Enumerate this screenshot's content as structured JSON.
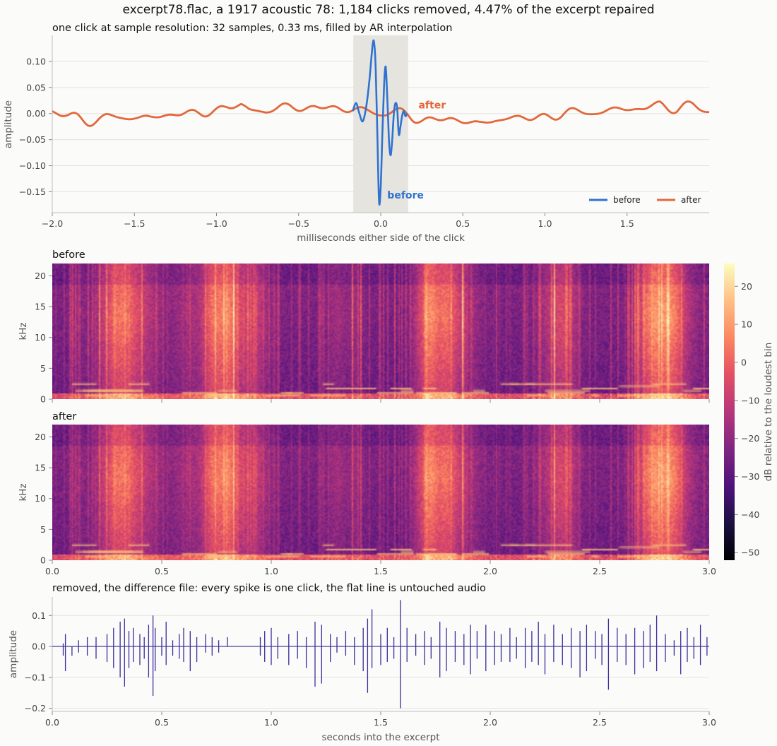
{
  "title": "excerpt78.flac, a 1917 acoustic 78: 1,184 clicks removed, 4.47% of the excerpt repaired",
  "colors": {
    "before": "#2f73d0",
    "after": "#e2683c",
    "diff": "#3a2d9c",
    "highlight": "#e6e4df",
    "grid": "#e3e3e3",
    "axis": "#bdbdbd"
  },
  "chart_data": [
    {
      "type": "line",
      "title": "one click at sample resolution: 32 samples, 0.33 ms, filled by AR interpolation",
      "xlabel": "milliseconds either side of the click",
      "ylabel": "amplitude",
      "xlim": [
        -2.0,
        2.0
      ],
      "ylim": [
        -0.19,
        0.15
      ],
      "xticks": [
        "−2.0",
        "−1.5",
        "−1.0",
        "−0.5",
        "0.0",
        "0.5",
        "1.0",
        "1.5"
      ],
      "xtick_values": [
        -2.0,
        -1.5,
        -1.0,
        -0.5,
        0.0,
        0.5,
        1.0,
        1.5
      ],
      "yticks": [
        "0.10",
        "0.05",
        "0.00",
        "−0.05",
        "−0.10",
        "−0.15"
      ],
      "ytick_values": [
        0.1,
        0.05,
        0.0,
        -0.05,
        -0.1,
        -0.15
      ],
      "grid": true,
      "shaded_region": [
        -0.167,
        0.167
      ],
      "legend": "bottom-right",
      "annotations": [
        {
          "text": "before",
          "x": 0.04,
          "y": -0.163,
          "series": "before"
        },
        {
          "text": "after",
          "x": 0.23,
          "y": 0.01,
          "series": "after"
        }
      ],
      "series": [
        {
          "name": "before",
          "x": [
            -0.17,
            -0.15,
            -0.13,
            -0.11,
            -0.09,
            -0.07,
            -0.05,
            -0.04,
            -0.03,
            -0.02,
            -0.01,
            0.0,
            0.01,
            0.02,
            0.03,
            0.04,
            0.05,
            0.06,
            0.07,
            0.08,
            0.09,
            0.1,
            0.11,
            0.12,
            0.13,
            0.14,
            0.15,
            0.16
          ],
          "y": [
            0.005,
            0.02,
            0.0,
            -0.015,
            0.01,
            0.06,
            0.13,
            0.135,
            0.08,
            -0.05,
            -0.17,
            -0.14,
            -0.04,
            0.05,
            0.09,
            0.03,
            -0.05,
            -0.08,
            -0.05,
            0.0,
            0.02,
            0.01,
            -0.04,
            -0.025,
            -0.005,
            0.005,
            -0.005,
            0.0
          ]
        },
        {
          "name": "after",
          "x": [
            -2.0,
            -1.9,
            -1.8,
            -1.7,
            -1.6,
            -1.5,
            -1.4,
            -1.3,
            -1.2,
            -1.1,
            -1.0,
            -0.9,
            -0.85,
            -0.8,
            -0.7,
            -0.6,
            -0.5,
            -0.4,
            -0.3,
            -0.2,
            -0.1,
            0.0,
            0.1,
            0.2,
            0.3,
            0.4,
            0.5,
            0.6,
            0.7,
            0.8,
            0.9,
            1.0,
            1.1,
            1.2,
            1.3,
            1.4,
            1.5,
            1.6,
            1.7,
            1.8,
            1.9,
            2.0
          ],
          "y": [
            0.004,
            -0.006,
            -0.01,
            -0.012,
            -0.008,
            -0.005,
            -0.008,
            -0.004,
            0.0,
            0.003,
            0.005,
            0.012,
            0.018,
            0.008,
            0.006,
            0.01,
            0.012,
            0.013,
            0.01,
            0.008,
            0.005,
            0.004,
            0.0,
            -0.008,
            -0.01,
            -0.012,
            -0.015,
            -0.018,
            -0.012,
            -0.01,
            -0.008,
            -0.005,
            -0.002,
            0.002,
            0.004,
            0.006,
            0.008,
            0.01,
            0.018,
            0.01,
            0.012,
            0.008
          ]
        }
      ]
    },
    {
      "type": "heatmap",
      "title": "before",
      "ylabel": "kHz",
      "xlim": [
        0,
        3.0
      ],
      "ylim": [
        0,
        22
      ],
      "yticks": [
        "0",
        "5",
        "10",
        "15",
        "20"
      ],
      "ytick_values": [
        0,
        5,
        10,
        15,
        20
      ],
      "colormap": "magma",
      "colorbar": {
        "label": "dB relative to the loudest bin",
        "range": [
          -52,
          26
        ],
        "ticks": [
          "20",
          "10",
          "0",
          "−10",
          "−20",
          "−30",
          "−40",
          "−50"
        ],
        "tick_values": [
          20,
          10,
          0,
          -10,
          -20,
          -30,
          -40,
          -50
        ]
      }
    },
    {
      "type": "heatmap",
      "title": "after",
      "ylabel": "kHz",
      "xlim": [
        0,
        3.0
      ],
      "ylim": [
        0,
        22
      ],
      "xticks": [
        "0.0",
        "0.5",
        "1.0",
        "1.5",
        "2.0",
        "2.5",
        "3.0"
      ],
      "xtick_values": [
        0.0,
        0.5,
        1.0,
        1.5,
        2.0,
        2.5,
        3.0
      ],
      "yticks": [
        "0",
        "5",
        "10",
        "15",
        "20"
      ],
      "ytick_values": [
        0,
        5,
        10,
        15,
        20
      ],
      "colormap": "magma"
    },
    {
      "type": "bar",
      "title": "removed, the difference file: every spike is one click, the flat line is untouched audio",
      "xlabel": "seconds into the excerpt",
      "ylabel": "amplitude",
      "xlim": [
        0,
        3.0
      ],
      "ylim": [
        -0.21,
        0.16
      ],
      "xticks": [
        "0.0",
        "0.5",
        "1.0",
        "1.5",
        "2.0",
        "2.5",
        "3.0"
      ],
      "xtick_values": [
        0.0,
        0.5,
        1.0,
        1.5,
        2.0,
        2.5,
        3.0
      ],
      "yticks": [
        "0.1",
        "0.0",
        "−0.1",
        "−0.2"
      ],
      "ytick_values": [
        0.1,
        0.0,
        -0.1,
        -0.2
      ],
      "grid": true,
      "spikes": [
        {
          "x": 0.05,
          "top": 0.01,
          "bottom": -0.03
        },
        {
          "x": 0.06,
          "top": 0.04,
          "bottom": -0.08
        },
        {
          "x": 0.09,
          "top": 0.0,
          "bottom": -0.03
        },
        {
          "x": 0.12,
          "top": 0.02,
          "bottom": -0.02
        },
        {
          "x": 0.16,
          "top": 0.03,
          "bottom": -0.03
        },
        {
          "x": 0.2,
          "top": 0.03,
          "bottom": -0.04
        },
        {
          "x": 0.25,
          "top": 0.04,
          "bottom": -0.05
        },
        {
          "x": 0.28,
          "top": 0.06,
          "bottom": -0.07
        },
        {
          "x": 0.31,
          "top": 0.08,
          "bottom": -0.1
        },
        {
          "x": 0.33,
          "top": 0.09,
          "bottom": -0.13
        },
        {
          "x": 0.35,
          "top": 0.05,
          "bottom": -0.07
        },
        {
          "x": 0.37,
          "top": 0.06,
          "bottom": -0.05
        },
        {
          "x": 0.4,
          "top": 0.04,
          "bottom": -0.06
        },
        {
          "x": 0.42,
          "top": 0.03,
          "bottom": -0.04
        },
        {
          "x": 0.44,
          "top": 0.07,
          "bottom": -0.1
        },
        {
          "x": 0.46,
          "top": 0.1,
          "bottom": -0.16
        },
        {
          "x": 0.47,
          "top": 0.06,
          "bottom": -0.08
        },
        {
          "x": 0.5,
          "top": 0.03,
          "bottom": -0.03
        },
        {
          "x": 0.52,
          "top": 0.08,
          "bottom": -0.06
        },
        {
          "x": 0.55,
          "top": 0.02,
          "bottom": -0.03
        },
        {
          "x": 0.58,
          "top": 0.04,
          "bottom": -0.04
        },
        {
          "x": 0.6,
          "top": 0.06,
          "bottom": -0.05
        },
        {
          "x": 0.63,
          "top": 0.05,
          "bottom": -0.08
        },
        {
          "x": 0.66,
          "top": 0.03,
          "bottom": -0.05
        },
        {
          "x": 0.7,
          "top": 0.04,
          "bottom": -0.02
        },
        {
          "x": 0.73,
          "top": 0.03,
          "bottom": -0.03
        },
        {
          "x": 0.76,
          "top": 0.02,
          "bottom": -0.02
        },
        {
          "x": 0.8,
          "top": 0.03,
          "bottom": 0.0
        },
        {
          "x": 0.95,
          "top": 0.03,
          "bottom": -0.03
        },
        {
          "x": 0.97,
          "top": 0.05,
          "bottom": -0.05
        },
        {
          "x": 1.0,
          "top": 0.06,
          "bottom": -0.06
        },
        {
          "x": 1.03,
          "top": 0.03,
          "bottom": -0.04
        },
        {
          "x": 1.08,
          "top": 0.04,
          "bottom": -0.06
        },
        {
          "x": 1.12,
          "top": 0.05,
          "bottom": -0.04
        },
        {
          "x": 1.16,
          "top": 0.03,
          "bottom": -0.07
        },
        {
          "x": 1.2,
          "top": 0.08,
          "bottom": -0.13
        },
        {
          "x": 1.23,
          "top": 0.07,
          "bottom": -0.12
        },
        {
          "x": 1.27,
          "top": 0.04,
          "bottom": -0.05
        },
        {
          "x": 1.3,
          "top": 0.03,
          "bottom": -0.02
        },
        {
          "x": 1.34,
          "top": 0.05,
          "bottom": -0.03
        },
        {
          "x": 1.38,
          "top": 0.03,
          "bottom": -0.06
        },
        {
          "x": 1.42,
          "top": 0.06,
          "bottom": -0.08
        },
        {
          "x": 1.44,
          "top": 0.09,
          "bottom": -0.15
        },
        {
          "x": 1.46,
          "top": 0.12,
          "bottom": -0.07
        },
        {
          "x": 1.5,
          "top": 0.04,
          "bottom": -0.06
        },
        {
          "x": 1.53,
          "top": 0.06,
          "bottom": -0.05
        },
        {
          "x": 1.56,
          "top": 0.03,
          "bottom": -0.04
        },
        {
          "x": 1.59,
          "top": 0.15,
          "bottom": -0.2
        },
        {
          "x": 1.62,
          "top": 0.06,
          "bottom": -0.05
        },
        {
          "x": 1.66,
          "top": 0.04,
          "bottom": -0.03
        },
        {
          "x": 1.7,
          "top": 0.05,
          "bottom": -0.06
        },
        {
          "x": 1.73,
          "top": 0.03,
          "bottom": -0.04
        },
        {
          "x": 1.77,
          "top": 0.08,
          "bottom": -0.1
        },
        {
          "x": 1.8,
          "top": 0.06,
          "bottom": -0.08
        },
        {
          "x": 1.84,
          "top": 0.05,
          "bottom": -0.05
        },
        {
          "x": 1.88,
          "top": 0.04,
          "bottom": -0.06
        },
        {
          "x": 1.91,
          "top": 0.07,
          "bottom": -0.09
        },
        {
          "x": 1.94,
          "top": 0.05,
          "bottom": -0.04
        },
        {
          "x": 1.98,
          "top": 0.07,
          "bottom": -0.08
        },
        {
          "x": 2.02,
          "top": 0.05,
          "bottom": -0.06
        },
        {
          "x": 2.05,
          "top": 0.04,
          "bottom": -0.05
        },
        {
          "x": 2.09,
          "top": 0.06,
          "bottom": -0.05
        },
        {
          "x": 2.12,
          "top": 0.03,
          "bottom": -0.04
        },
        {
          "x": 2.16,
          "top": 0.06,
          "bottom": -0.07
        },
        {
          "x": 2.19,
          "top": 0.05,
          "bottom": -0.05
        },
        {
          "x": 2.22,
          "top": 0.08,
          "bottom": -0.06
        },
        {
          "x": 2.25,
          "top": 0.04,
          "bottom": -0.09
        },
        {
          "x": 2.29,
          "top": 0.07,
          "bottom": -0.05
        },
        {
          "x": 2.33,
          "top": 0.04,
          "bottom": -0.06
        },
        {
          "x": 2.37,
          "top": 0.06,
          "bottom": -0.07
        },
        {
          "x": 2.41,
          "top": 0.05,
          "bottom": -0.1
        },
        {
          "x": 2.44,
          "top": 0.07,
          "bottom": -0.08
        },
        {
          "x": 2.48,
          "top": 0.05,
          "bottom": -0.04
        },
        {
          "x": 2.51,
          "top": 0.04,
          "bottom": -0.06
        },
        {
          "x": 2.54,
          "top": 0.09,
          "bottom": -0.14
        },
        {
          "x": 2.58,
          "top": 0.06,
          "bottom": -0.05
        },
        {
          "x": 2.62,
          "top": 0.04,
          "bottom": -0.06
        },
        {
          "x": 2.66,
          "top": 0.06,
          "bottom": -0.09
        },
        {
          "x": 2.7,
          "top": 0.05,
          "bottom": -0.07
        },
        {
          "x": 2.73,
          "top": 0.07,
          "bottom": -0.05
        },
        {
          "x": 2.76,
          "top": 0.1,
          "bottom": -0.08
        },
        {
          "x": 2.8,
          "top": 0.04,
          "bottom": -0.05
        },
        {
          "x": 2.84,
          "top": 0.02,
          "bottom": -0.03
        },
        {
          "x": 2.87,
          "top": 0.05,
          "bottom": -0.09
        },
        {
          "x": 2.9,
          "top": 0.06,
          "bottom": -0.05
        },
        {
          "x": 2.93,
          "top": 0.03,
          "bottom": -0.04
        },
        {
          "x": 2.96,
          "top": 0.07,
          "bottom": -0.06
        },
        {
          "x": 2.99,
          "top": 0.03,
          "bottom": -0.03
        }
      ]
    }
  ]
}
